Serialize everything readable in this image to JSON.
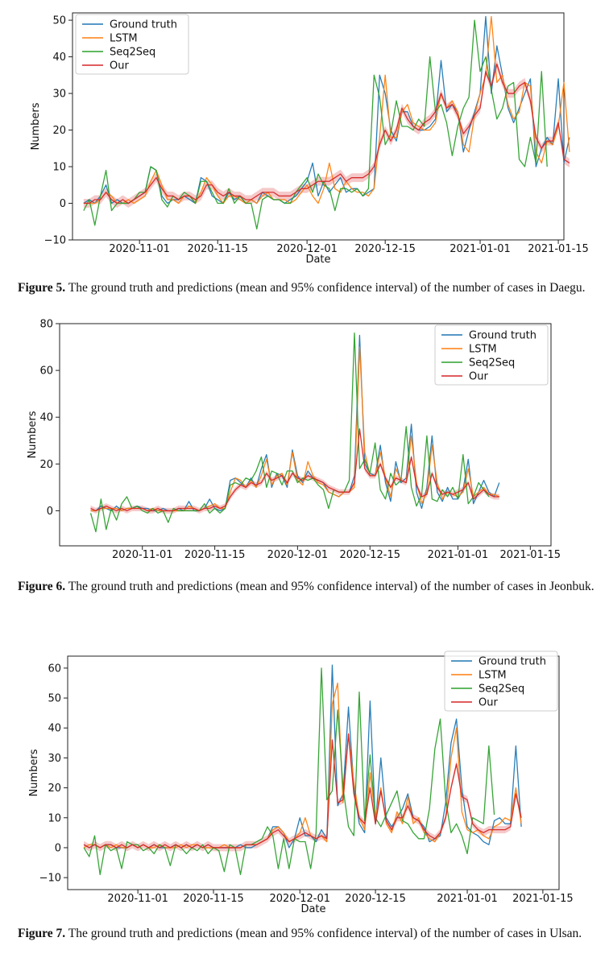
{
  "chart_data": [
    {
      "type": "line",
      "xlabel": "Date",
      "ylabel": "Numbers",
      "legend_position": "top-left",
      "xlim": [
        "2020-10-20",
        "2021-01-16"
      ],
      "ylim": [
        -10,
        52
      ],
      "x_ticks": [
        "2020-11-01",
        "2020-11-15",
        "2020-12-01",
        "2020-12-15",
        "2021-01-01",
        "2021-01-15"
      ],
      "x_tick_labels": [
        "2020-11-01",
        "2020-11-15",
        "2020-12-01",
        "2020-12-15",
        "2021-01-01",
        "2021-01-15"
      ],
      "y_ticks": [
        -10,
        0,
        10,
        20,
        30,
        40,
        50
      ],
      "y_tick_labels": [
        "−10",
        "0",
        "10",
        "20",
        "30",
        "40",
        "50"
      ],
      "x_start": "2020-10-22",
      "series": [
        {
          "name": "Ground truth",
          "color": "#1f77b4",
          "values": [
            0,
            1,
            0,
            2,
            5,
            0,
            1,
            0,
            0,
            1,
            2,
            3,
            10,
            9,
            2,
            0,
            1,
            1,
            2,
            1,
            0,
            7,
            6,
            2,
            1,
            0,
            3,
            1,
            2,
            0,
            1,
            0,
            3,
            2,
            1,
            1,
            0,
            1,
            2,
            4,
            6,
            11,
            2,
            6,
            3,
            5,
            7,
            3,
            4,
            4,
            2,
            3,
            4,
            35,
            30,
            20,
            17,
            25,
            25,
            21,
            20,
            20,
            21,
            23,
            39,
            25,
            27,
            25,
            14,
            20,
            25,
            30,
            51,
            30,
            43,
            35,
            26,
            22,
            26,
            30,
            34,
            10,
            15,
            18,
            16,
            34,
            11,
            18
          ]
        },
        {
          "name": "LSTM",
          "color": "#ff7f0e",
          "values": [
            0,
            0,
            0,
            1,
            3,
            2,
            0,
            0,
            1,
            0,
            1,
            2,
            6,
            9,
            5,
            1,
            1,
            0,
            2,
            2,
            0,
            3,
            7,
            5,
            2,
            0,
            2,
            2,
            1,
            0,
            1,
            0,
            2,
            3,
            1,
            1,
            1,
            0,
            1,
            3,
            5,
            2,
            0,
            4,
            11,
            4,
            3,
            6,
            4,
            3,
            3,
            2,
            4,
            18,
            35,
            18,
            18,
            25,
            27,
            22,
            21,
            20,
            20,
            22,
            30,
            26,
            28,
            25,
            16,
            14,
            24,
            30,
            35,
            51,
            33,
            35,
            27,
            23,
            25,
            33,
            32,
            14,
            11,
            17,
            16,
            21,
            33,
            14
          ]
        },
        {
          "name": "Seq2Seq",
          "color": "#2ca02c",
          "values": [
            -2,
            1,
            -6,
            2,
            9,
            -2,
            0,
            0,
            0,
            1,
            3,
            3,
            10,
            9,
            1,
            -1,
            2,
            1,
            3,
            2,
            0,
            6,
            6,
            3,
            0,
            0,
            4,
            0,
            2,
            0,
            0,
            -7,
            1,
            2,
            1,
            1,
            0,
            0,
            3,
            5,
            7,
            3,
            8,
            5,
            4,
            -2,
            4,
            4,
            3,
            4,
            2,
            4,
            35,
            29,
            16,
            19,
            28,
            21,
            21,
            20,
            23,
            21,
            40,
            25,
            27,
            22,
            13,
            21,
            26,
            29,
            50,
            36,
            40,
            31,
            23,
            26,
            32,
            33,
            12,
            10,
            18,
            11,
            36,
            10
          ]
        },
        {
          "name": "Our",
          "color": "#d62728",
          "values": [
            0,
            0,
            1,
            1,
            3,
            1,
            0,
            1,
            0,
            1,
            2,
            3,
            5,
            7,
            4,
            2,
            2,
            1,
            2,
            2,
            1,
            2,
            5,
            5,
            3,
            2,
            3,
            2,
            2,
            1,
            1,
            2,
            3,
            3,
            3,
            2,
            2,
            2,
            3,
            4,
            4,
            5,
            6,
            6,
            6,
            7,
            8,
            6,
            7,
            7,
            7,
            8,
            10,
            16,
            20,
            17,
            20,
            26,
            23,
            21,
            20,
            22,
            23,
            25,
            30,
            26,
            27,
            24,
            19,
            21,
            24,
            26,
            36,
            32,
            38,
            33,
            30,
            30,
            32,
            33,
            28,
            18,
            15,
            17,
            17,
            22,
            12,
            11
          ]
        }
      ]
    },
    {
      "type": "line",
      "xlabel": "",
      "ylabel": "Numbers",
      "legend_position": "top-right",
      "xlim": [
        "2020-10-16",
        "2021-01-19"
      ],
      "ylim": [
        -15,
        80
      ],
      "x_ticks": [
        "2020-11-01",
        "2020-11-15",
        "2020-12-01",
        "2020-12-15",
        "2021-01-01",
        "2021-01-15"
      ],
      "x_tick_labels": [
        "2020-11-01",
        "2020-11-15",
        "2020-12-01",
        "2020-12-15",
        "2021-01-01",
        "2021-01-15"
      ],
      "y_ticks": [
        0,
        20,
        40,
        60,
        80
      ],
      "y_tick_labels": [
        "0",
        "20",
        "40",
        "60",
        "80"
      ],
      "x_start": "2020-10-22",
      "series": [
        {
          "name": "Ground truth",
          "color": "#1f77b4",
          "values": [
            0,
            0,
            2,
            1,
            0,
            2,
            0,
            1,
            1,
            2,
            1,
            1,
            0,
            0,
            1,
            0,
            0,
            1,
            0,
            4,
            0,
            0,
            1,
            5,
            1,
            0,
            1,
            13,
            14,
            12,
            10,
            14,
            10,
            18,
            24,
            10,
            16,
            15,
            10,
            26,
            15,
            12,
            17,
            14,
            13,
            12,
            8,
            7,
            6,
            8,
            8,
            15,
            75,
            20,
            16,
            15,
            28,
            12,
            4,
            21,
            12,
            14,
            37,
            8,
            1,
            10,
            32,
            8,
            4,
            10,
            5,
            5,
            9,
            22,
            3,
            8,
            13,
            8,
            6,
            12
          ]
        },
        {
          "name": "LSTM",
          "color": "#ff7f0e",
          "values": [
            0,
            0,
            1,
            1,
            1,
            1,
            0,
            1,
            1,
            1,
            1,
            0,
            1,
            0,
            0,
            0,
            0,
            0,
            0,
            2,
            1,
            0,
            1,
            2,
            3,
            1,
            1,
            8,
            14,
            13,
            10,
            13,
            10,
            15,
            22,
            11,
            15,
            16,
            11,
            25,
            13,
            11,
            21,
            15,
            12,
            11,
            8,
            7,
            6,
            8,
            8,
            10,
            70,
            25,
            15,
            15,
            25,
            14,
            6,
            18,
            13,
            12,
            32,
            12,
            3,
            8,
            28,
            12,
            5,
            8,
            7,
            6,
            8,
            18,
            6,
            8,
            10,
            7,
            7,
            6
          ]
        },
        {
          "name": "Seq2Seq",
          "color": "#2ca02c",
          "values": [
            -1,
            -9,
            5,
            -8,
            1,
            -4,
            3,
            6,
            1,
            2,
            0,
            -1,
            1,
            -1,
            0,
            -5,
            1,
            0,
            0,
            0,
            0,
            0,
            3,
            -1,
            1,
            -1,
            1,
            11,
            12,
            11,
            14,
            13,
            17,
            23,
            10,
            17,
            16,
            11,
            17,
            17,
            12,
            14,
            13,
            14,
            11,
            9,
            1,
            9,
            8,
            8,
            13,
            76,
            18,
            22,
            16,
            29,
            9,
            5,
            16,
            11,
            13,
            36,
            10,
            2,
            7,
            32,
            5,
            4,
            9,
            6,
            10,
            5,
            24,
            3,
            6,
            12,
            9,
            6
          ]
        },
        {
          "name": "Our",
          "color": "#d62728",
          "values": [
            1,
            0,
            1,
            2,
            1,
            0,
            1,
            0,
            1,
            1,
            1,
            0,
            0,
            1,
            0,
            0,
            0,
            1,
            1,
            1,
            1,
            0,
            1,
            1,
            2,
            1,
            2,
            6,
            9,
            11,
            10,
            12,
            11,
            12,
            16,
            13,
            14,
            15,
            12,
            16,
            14,
            13,
            15,
            14,
            13,
            12,
            10,
            9,
            8,
            8,
            8,
            12,
            35,
            18,
            15,
            15,
            20,
            14,
            10,
            14,
            13,
            12,
            23,
            11,
            6,
            7,
            16,
            10,
            7,
            8,
            7,
            8,
            9,
            12,
            5,
            7,
            9,
            7,
            6,
            6
          ]
        }
      ]
    },
    {
      "type": "line",
      "xlabel": "Date",
      "ylabel": "Numbers",
      "legend_position": "top-right",
      "xlim": [
        "2020-10-19",
        "2021-01-18"
      ],
      "ylim": [
        -14,
        64
      ],
      "x_ticks": [
        "2020-11-01",
        "2020-11-15",
        "2020-12-01",
        "2020-12-15",
        "2021-01-01",
        "2021-01-15"
      ],
      "x_tick_labels": [
        "2020-11-01",
        "2020-11-15",
        "2020-12-01",
        "2020-12-15",
        "2021-01-01",
        "2021-01-15"
      ],
      "y_ticks": [
        -10,
        0,
        10,
        20,
        30,
        40,
        50,
        60
      ],
      "y_tick_labels": [
        "−10",
        "0",
        "10",
        "20",
        "30",
        "40",
        "50",
        "60"
      ],
      "x_start": "2020-10-22",
      "series": [
        {
          "name": "Ground truth",
          "color": "#1f77b4",
          "values": [
            1,
            0,
            1,
            0,
            1,
            1,
            0,
            0,
            0,
            1,
            0,
            1,
            0,
            1,
            0,
            0,
            0,
            1,
            0,
            1,
            0,
            1,
            0,
            1,
            0,
            0,
            0,
            0,
            0,
            1,
            0,
            0,
            1,
            2,
            3,
            7,
            7,
            5,
            0,
            3,
            10,
            4,
            4,
            2,
            6,
            3,
            61,
            14,
            18,
            47,
            20,
            8,
            5,
            49,
            8,
            30,
            10,
            7,
            10,
            13,
            18,
            10,
            9,
            7,
            2,
            3,
            4,
            15,
            35,
            43,
            20,
            7,
            5,
            4,
            2,
            1,
            9,
            10,
            8,
            8,
            34,
            7
          ]
        },
        {
          "name": "LSTM",
          "color": "#ff7f0e",
          "values": [
            0,
            1,
            1,
            0,
            1,
            0,
            1,
            0,
            0,
            1,
            0,
            1,
            0,
            0,
            1,
            0,
            0,
            0,
            1,
            0,
            1,
            1,
            0,
            0,
            0,
            0,
            1,
            0,
            0,
            0,
            1,
            1,
            1,
            2,
            3,
            6,
            7,
            5,
            2,
            3,
            5,
            10,
            4,
            3,
            4,
            2,
            48,
            55,
            15,
            38,
            22,
            10,
            6,
            25,
            10,
            20,
            8,
            5,
            12,
            8,
            17,
            8,
            10,
            5,
            3,
            2,
            5,
            10,
            30,
            40,
            12,
            6,
            5,
            6,
            4,
            3,
            7,
            8,
            10,
            9,
            20,
            8
          ]
        },
        {
          "name": "Seq2Seq",
          "color": "#2ca02c",
          "values": [
            0,
            -3,
            4,
            -9,
            1,
            -1,
            0,
            -7,
            2,
            1,
            1,
            -1,
            0,
            -2,
            1,
            0,
            -6,
            1,
            0,
            -2,
            0,
            -1,
            1,
            -2,
            0,
            -1,
            -8,
            1,
            0,
            -9,
            1,
            1,
            2,
            3,
            7,
            4,
            -7,
            3,
            -7,
            3,
            2,
            2,
            -7,
            5,
            60,
            16,
            19,
            46,
            20,
            7,
            4,
            52,
            9,
            31,
            10,
            7,
            11,
            15,
            19,
            9,
            8,
            5,
            3,
            3,
            13,
            33,
            43,
            16,
            5,
            8,
            4,
            -2,
            10,
            9,
            8,
            34,
            11
          ]
        },
        {
          "name": "Our",
          "color": "#d62728",
          "values": [
            1,
            0,
            1,
            0,
            1,
            1,
            0,
            1,
            0,
            1,
            0,
            1,
            0,
            1,
            0,
            1,
            0,
            1,
            0,
            1,
            0,
            1,
            0,
            1,
            0,
            0,
            0,
            0,
            0,
            0,
            1,
            1,
            1,
            2,
            3,
            5,
            6,
            4,
            2,
            3,
            4,
            5,
            4,
            3,
            4,
            3,
            36,
            15,
            16,
            38,
            18,
            10,
            8,
            20,
            8,
            19,
            9,
            6,
            10,
            10,
            14,
            10,
            9,
            6,
            4,
            3,
            5,
            10,
            20,
            28,
            17,
            16,
            8,
            6,
            5,
            6,
            6,
            6,
            6,
            7,
            18,
            10
          ]
        }
      ]
    }
  ],
  "captions": [
    {
      "label": "Figure 5.",
      "text": " The ground truth and predictions (mean and 95% confidence interval) of the number of cases in Daegu."
    },
    {
      "label": "Figure 6.",
      "text": " The ground truth and predictions (mean and 95% confidence interval) of the number of cases in Jeonbuk."
    },
    {
      "label": "Figure 7.",
      "text": " The ground truth and predictions (mean and 95% confidence interval) of the number of cases in Ulsan."
    }
  ]
}
